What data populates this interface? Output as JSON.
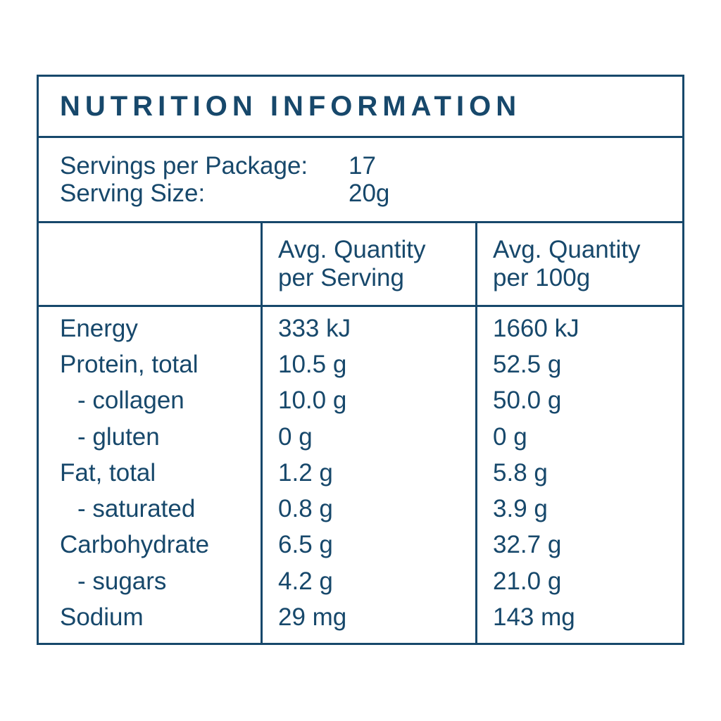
{
  "colors": {
    "ink": "#17486b",
    "background": "#ffffff"
  },
  "title": "NUTRITION INFORMATION",
  "serving_info": [
    {
      "label": "Servings per Package:",
      "value": "17"
    },
    {
      "label": "Serving Size:",
      "value": "20g"
    }
  ],
  "table": {
    "headers": {
      "per_serving": {
        "line1": "Avg. Quantity",
        "line2": "per Serving"
      },
      "per_100g": {
        "line1": "Avg. Quantity",
        "line2": "per 100g"
      }
    },
    "rows": [
      {
        "nutrient": "Energy",
        "per_serving": "333 kJ",
        "per_100g": "1660 kJ"
      },
      {
        "nutrient": "Protein, total",
        "per_serving": "10.5 g",
        "per_100g": "52.5 g"
      },
      {
        "nutrient": "- collagen",
        "per_serving": "10.0 g",
        "per_100g": "50.0 g"
      },
      {
        "nutrient": "- gluten",
        "per_serving": "0 g",
        "per_100g": "0 g"
      },
      {
        "nutrient": "Fat, total",
        "per_serving": "1.2 g",
        "per_100g": "5.8 g"
      },
      {
        "nutrient": "- saturated",
        "per_serving": "0.8 g",
        "per_100g": "3.9 g"
      },
      {
        "nutrient": "Carbohydrate",
        "per_serving": "6.5 g",
        "per_100g": "32.7 g"
      },
      {
        "nutrient": "- sugars",
        "per_serving": "4.2 g",
        "per_100g": "21.0 g"
      },
      {
        "nutrient": "Sodium",
        "per_serving": "29 mg",
        "per_100g": "143 mg"
      }
    ]
  }
}
